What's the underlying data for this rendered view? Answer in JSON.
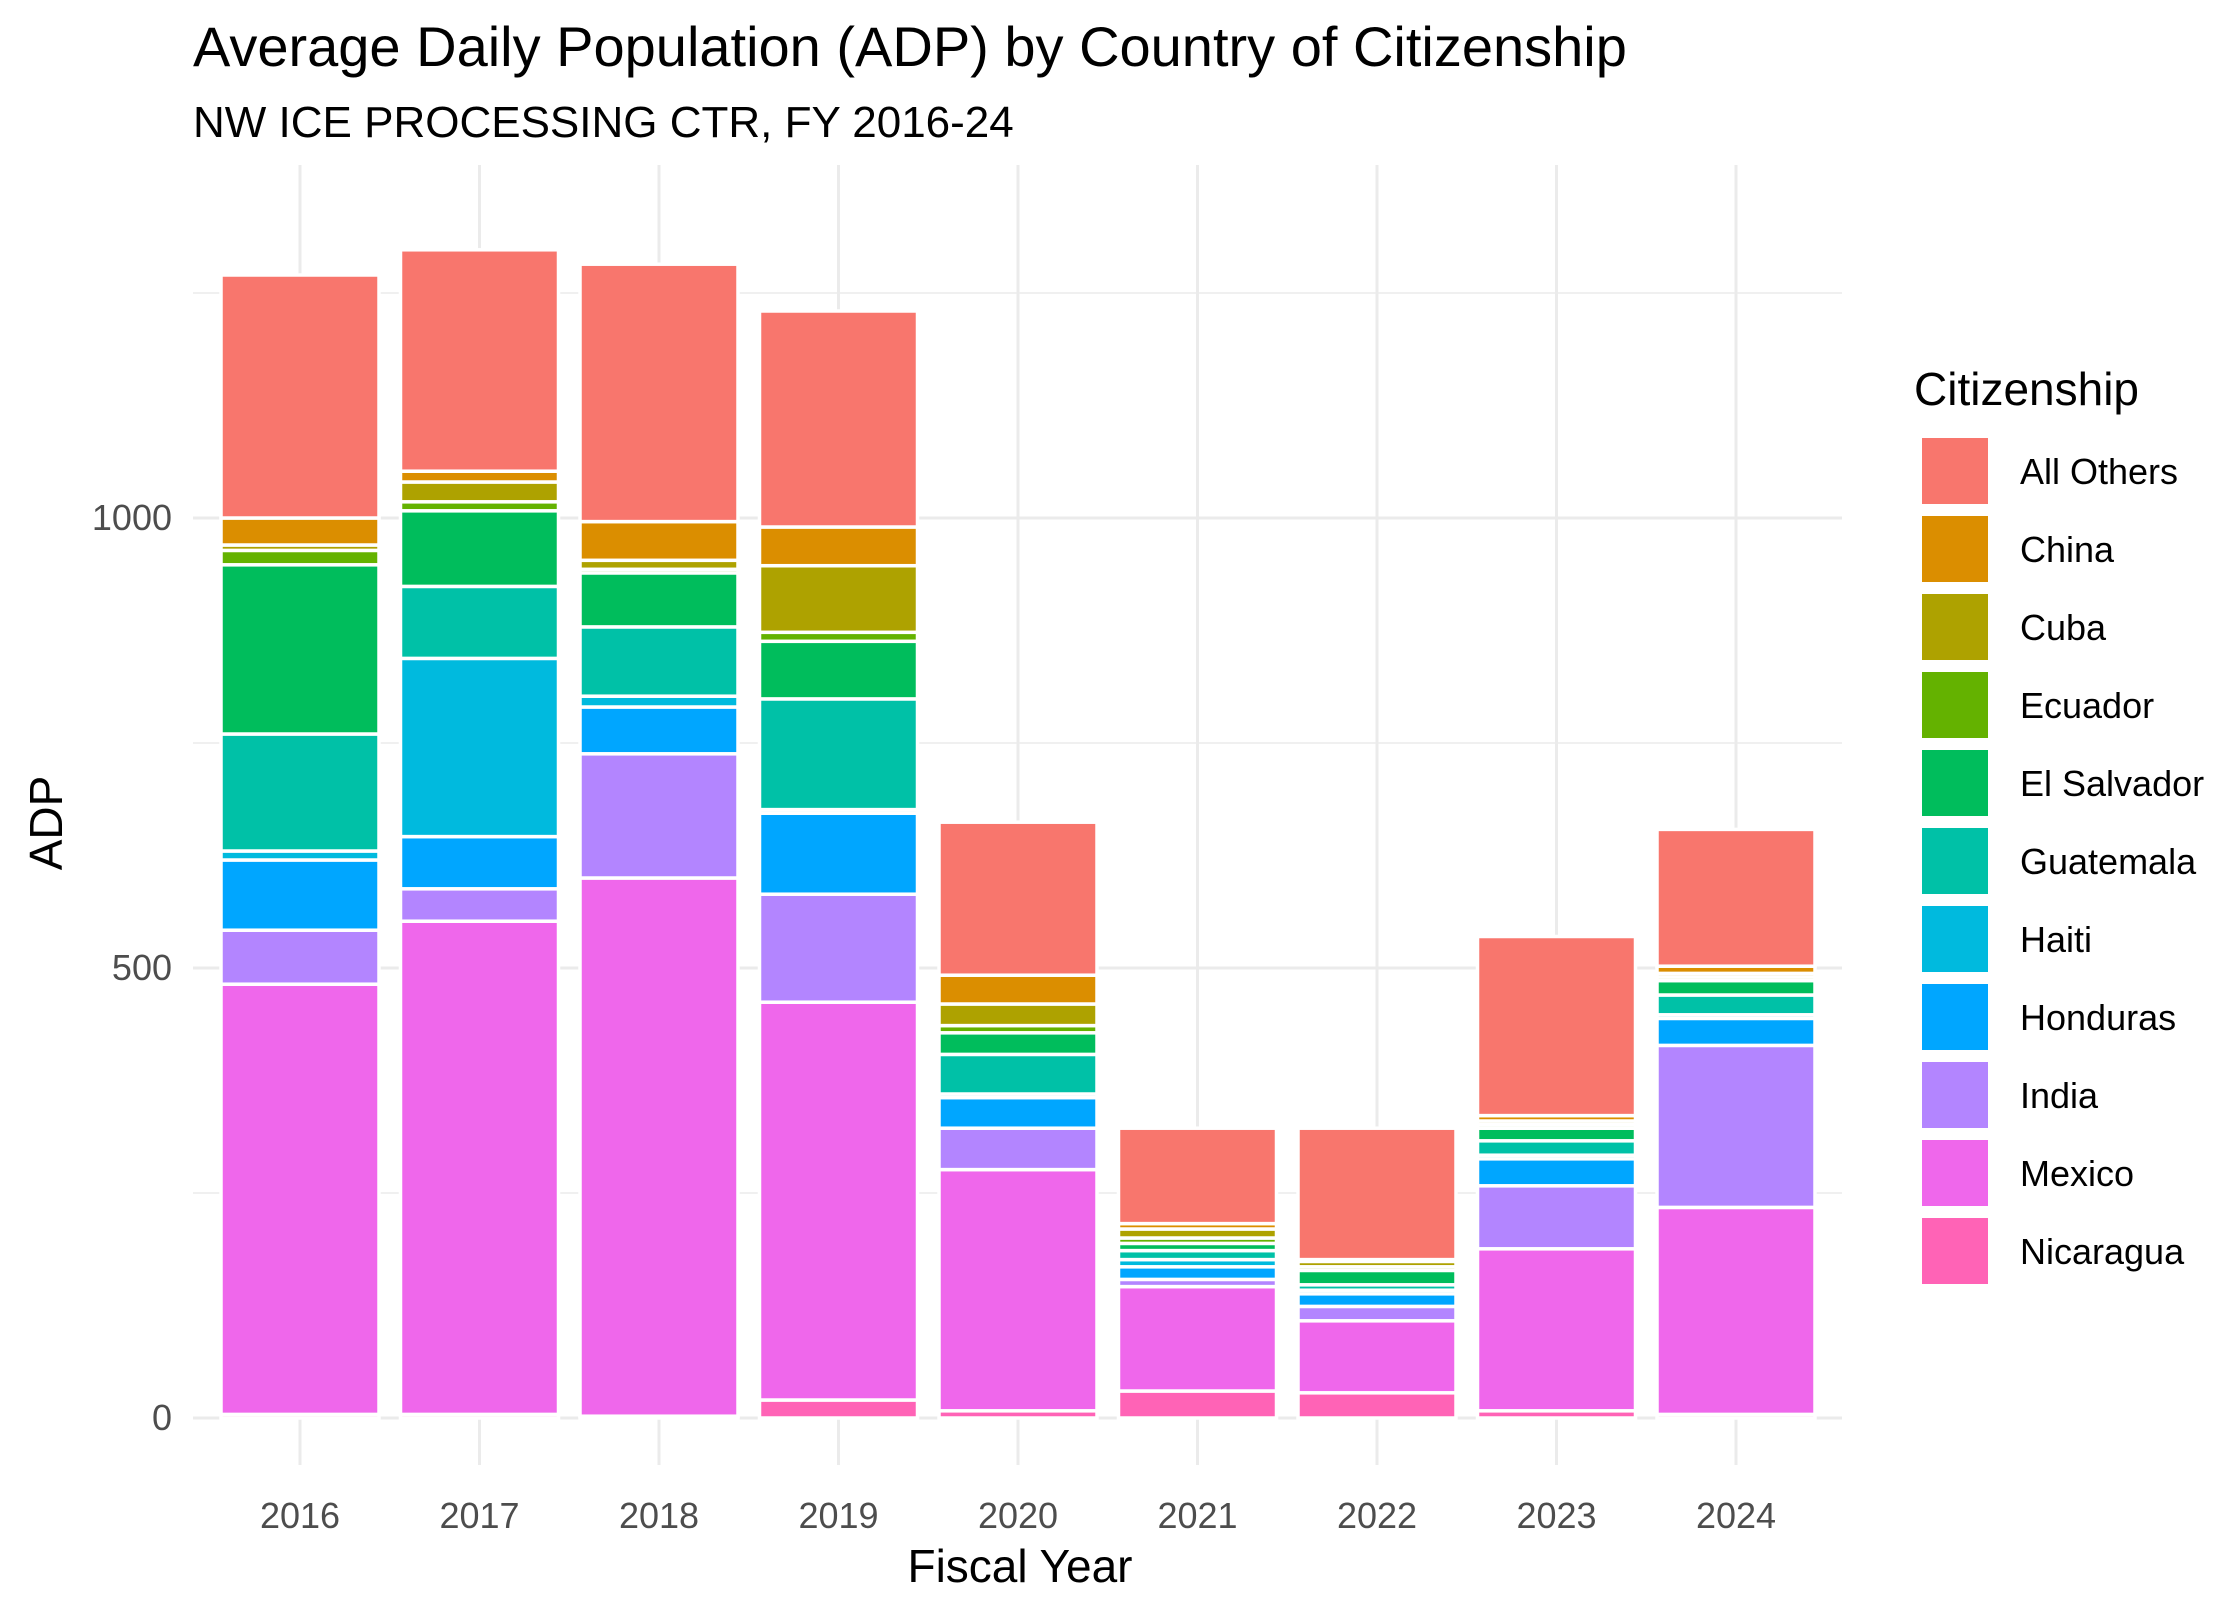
{
  "chart_data": {
    "type": "bar",
    "stacked": true,
    "title": "Average Daily Population (ADP) by Country of Citizenship",
    "subtitle": "NW ICE PROCESSING CTR, FY 2016-24",
    "xlabel": "Fiscal Year",
    "ylabel": "ADP",
    "ylim": [
      -45,
      1380
    ],
    "yticks": [
      0,
      500,
      1000
    ],
    "grid": true,
    "legend_title": "Citizenship",
    "legend_position": "right",
    "categories": [
      "2016",
      "2017",
      "2018",
      "2019",
      "2020",
      "2021",
      "2022",
      "2023",
      "2024"
    ],
    "stack_order_bottom_to_top": [
      "Nicaragua",
      "Mexico",
      "India",
      "Honduras",
      "Haiti",
      "Guatemala",
      "El Salvador",
      "Ecuador",
      "Cuba",
      "China",
      "All Others"
    ],
    "series": [
      {
        "name": "All Others",
        "color": "#F8766D",
        "values": [
          270,
          246,
          286,
          240,
          170,
          106,
          146,
          199,
          152
        ]
      },
      {
        "name": "China",
        "color": "#DB8E00",
        "values": [
          30,
          12,
          43,
          43,
          32,
          6,
          2,
          6,
          8
        ]
      },
      {
        "name": "Cuba",
        "color": "#AEA200",
        "values": [
          6,
          22,
          10,
          74,
          24,
          10,
          6,
          4,
          4
        ]
      },
      {
        "name": "Ecuador",
        "color": "#64B200",
        "values": [
          16,
          10,
          4,
          10,
          8,
          6,
          4,
          4,
          4
        ]
      },
      {
        "name": "El Salvador",
        "color": "#00BD5C",
        "values": [
          188,
          84,
          60,
          64,
          24,
          8,
          16,
          14,
          16
        ]
      },
      {
        "name": "Guatemala",
        "color": "#00C1A7",
        "values": [
          130,
          80,
          77,
          123,
          44,
          10,
          6,
          16,
          22
        ]
      },
      {
        "name": "Haiti",
        "color": "#00BADE",
        "values": [
          10,
          198,
          12,
          4,
          4,
          8,
          4,
          4,
          4
        ]
      },
      {
        "name": "Honduras",
        "color": "#00A6FF",
        "values": [
          78,
          58,
          52,
          90,
          34,
          14,
          14,
          30,
          30
        ]
      },
      {
        "name": "India",
        "color": "#B385FF",
        "values": [
          60,
          36,
          138,
          120,
          46,
          8,
          16,
          70,
          180
        ]
      },
      {
        "name": "Mexico",
        "color": "#EF67EB",
        "values": [
          478,
          548,
          598,
          442,
          268,
          116,
          80,
          180,
          230
        ]
      },
      {
        "name": "Nicaragua",
        "color": "#FF63B6",
        "values": [
          4,
          4,
          2,
          20,
          8,
          30,
          28,
          8,
          4
        ]
      }
    ]
  }
}
